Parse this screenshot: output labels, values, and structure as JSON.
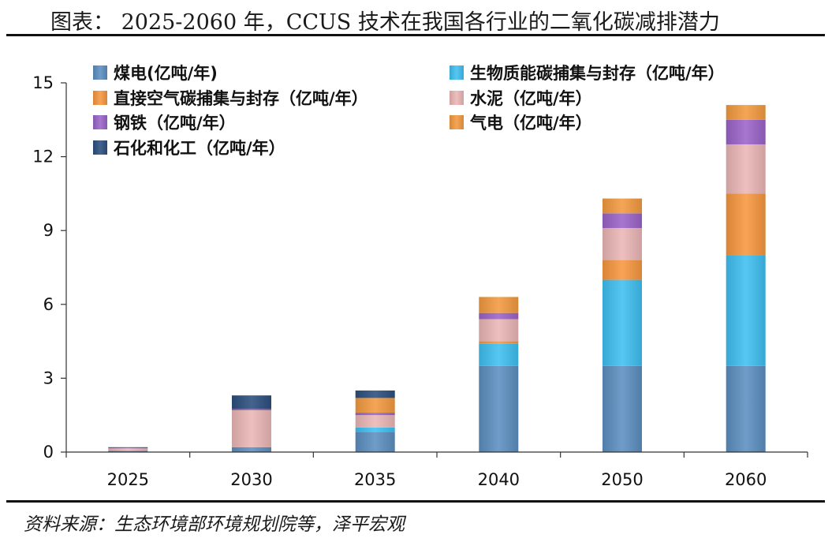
{
  "header": {
    "title": "图表： 2025-2060 年，CCUS 技术在我国各行业的二氧化碳减排潜力"
  },
  "footer": {
    "source": "资料来源：生态环境部环境规划院等，泽平宏观"
  },
  "chart_data": {
    "type": "bar",
    "stacked": true,
    "title": "",
    "xlabel": "",
    "ylabel": "",
    "categories": [
      "2025",
      "2030",
      "2035",
      "2040",
      "2050",
      "2060"
    ],
    "ylim": [
      0,
      15
    ],
    "yticks": [
      "0",
      "3",
      "6",
      "9",
      "12",
      "15"
    ],
    "grid": false,
    "legend_position": "top",
    "series": [
      {
        "name": "煤电(亿吨/年)",
        "color": "#5b8fc0",
        "values": [
          0.05,
          0.2,
          0.8,
          3.5,
          3.5,
          3.5
        ]
      },
      {
        "name": "生物质能碳捕集与封存（亿吨/年）",
        "color": "#3fbff0",
        "values": [
          0,
          0,
          0.2,
          0.9,
          3.5,
          4.5
        ]
      },
      {
        "name": "直接空气碳捕集与封存（亿吨/年）",
        "color": "#f7973f",
        "values": [
          0,
          0,
          0,
          0.1,
          0.8,
          2.5
        ]
      },
      {
        "name": "水泥（亿吨/年）",
        "color": "#eab6b5",
        "values": [
          0.1,
          1.5,
          0.5,
          0.9,
          1.3,
          2.0
        ]
      },
      {
        "name": "钢铁（亿吨/年）",
        "color": "#9b64c8",
        "values": [
          0.02,
          0.05,
          0.1,
          0.25,
          0.6,
          1.0
        ]
      },
      {
        "name": "气电（亿吨/年）",
        "color": "#f29a3f",
        "values": [
          0,
          0,
          0.6,
          0.65,
          0.6,
          0.6
        ]
      },
      {
        "name": "石化和化工（亿吨/年）",
        "color": "#2b4f7e",
        "values": [
          0.03,
          0.55,
          0.3,
          0,
          0,
          0
        ]
      }
    ]
  }
}
